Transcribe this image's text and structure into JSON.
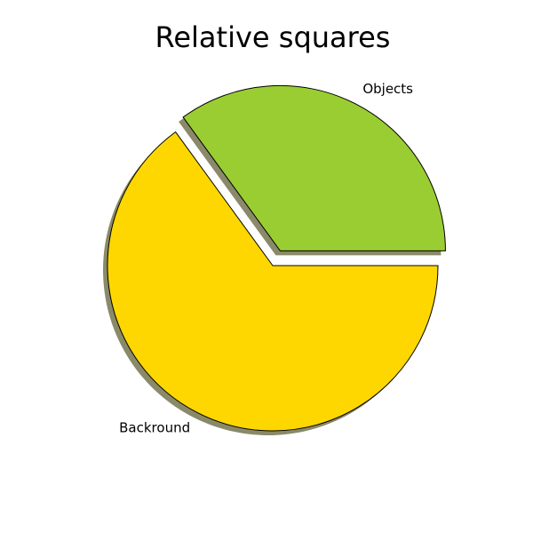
{
  "chart_data": {
    "type": "pie",
    "title": "Relative squares",
    "slices": [
      {
        "label": "Objects",
        "value": 35,
        "color": "#9acd32",
        "exploded": true
      },
      {
        "label": "Backround",
        "value": 65,
        "color": "#ffd700",
        "exploded": false
      }
    ],
    "start_angle_deg": 0,
    "direction": "counterclockwise",
    "shadow": true,
    "shadow_color": "#8a8a6a",
    "edge_color": "#000000"
  }
}
